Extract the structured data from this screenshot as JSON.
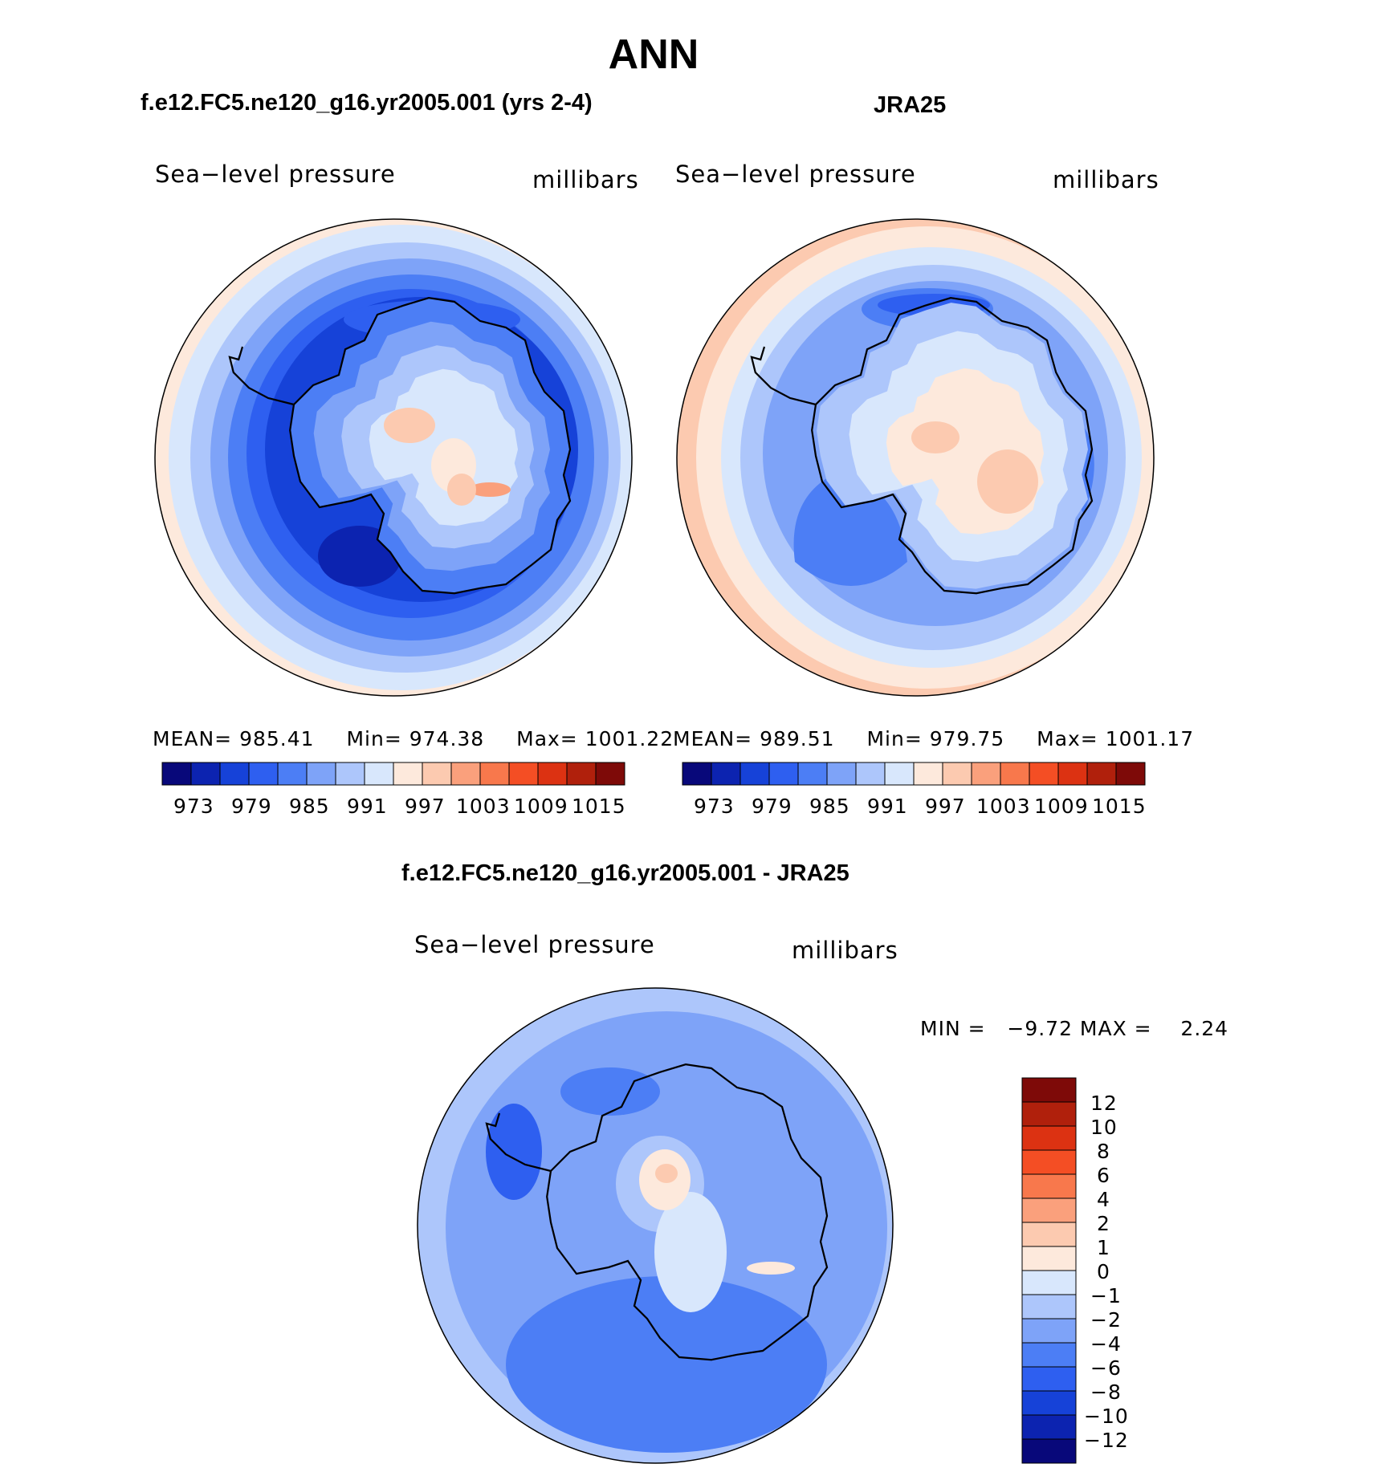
{
  "page_title": "ANN",
  "panels": [
    {
      "title": "f.e12.FC5.ne120_g16.yr2005.001 (yrs 2-4)",
      "variable": "Sea−level pressure",
      "units": "millibars",
      "stats": {
        "mean_label": "MEAN=",
        "mean": "985.41",
        "min_label": "Min=",
        "min": "974.38",
        "max_label": "Max=",
        "max": "1001.22"
      },
      "colorbar_labels": [
        "973",
        "979",
        "985",
        "991",
        "997",
        "1003",
        "1009",
        "1015"
      ]
    },
    {
      "title": "JRA25",
      "variable": "Sea−level pressure",
      "units": "millibars",
      "stats": {
        "mean_label": "MEAN=",
        "mean": "989.51",
        "min_label": "Min=",
        "min": "979.75",
        "max_label": "Max=",
        "max": "1001.17"
      },
      "colorbar_labels": [
        "973",
        "979",
        "985",
        "991",
        "997",
        "1003",
        "1009",
        "1015"
      ]
    }
  ],
  "diff_panel": {
    "title": "f.e12.FC5.ne120_g16.yr2005.001 - JRA25",
    "variable": "Sea−level pressure",
    "units": "millibars",
    "minmax_text": "MIN =   −9.72 MAX =    2.24",
    "colorbar_labels": [
      "12",
      "10",
      "8",
      "6",
      "4",
      "2",
      "1",
      "0",
      "−1",
      "−2",
      "−4",
      "−6",
      "−8",
      "−10",
      "−12"
    ]
  },
  "palette": [
    "#08087a",
    "#0c23b0",
    "#1642d8",
    "#2e5ff0",
    "#4c7ef5",
    "#7ea3f8",
    "#adc6fb",
    "#d8e7fc",
    "#fde9dc",
    "#fccab0",
    "#faa07c",
    "#f8784c",
    "#f44e24",
    "#dc3212",
    "#b0200c",
    "#7e0a08"
  ],
  "diff_palette": [
    "#7e0a08",
    "#b0200c",
    "#dc3212",
    "#f44e24",
    "#f8784c",
    "#faa07c",
    "#fccab0",
    "#fde9dc",
    "#d8e7fc",
    "#adc6fb",
    "#7ea3f8",
    "#4c7ef5",
    "#2e5ff0",
    "#1642d8",
    "#0c23b0",
    "#08087a"
  ]
}
